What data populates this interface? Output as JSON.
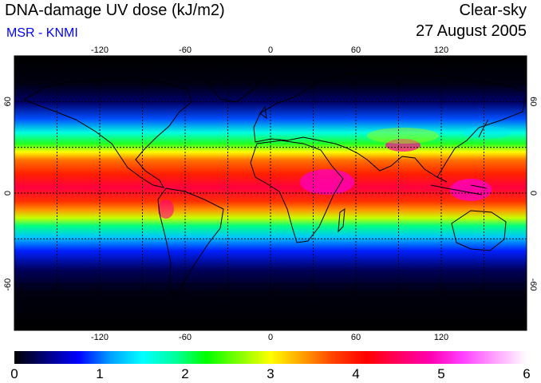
{
  "header": {
    "title": "DNA-damage UV dose (kJ/m2)",
    "subtitle": "MSR - KNMI",
    "condition": "Clear-sky",
    "date": "27 August 2005"
  },
  "map": {
    "projection": "equirectangular",
    "lon_range": [
      -180,
      180
    ],
    "lat_range": [
      -90,
      90
    ],
    "lon_ticks": [
      "-120",
      "-60",
      "0",
      "60",
      "120"
    ],
    "lat_ticks": [
      "60",
      "0",
      "-60"
    ],
    "grid": "dashed, every 30 degrees",
    "coastlines": true
  },
  "colorbar": {
    "min": 0,
    "max": 6,
    "labels": [
      "0",
      "1",
      "2",
      "3",
      "4",
      "5",
      "6"
    ],
    "colors": [
      "#000000",
      "#00007f",
      "#0000ff",
      "#00a0ff",
      "#00ffff",
      "#00ff9f",
      "#00ff00",
      "#7fff00",
      "#ffff00",
      "#ffa000",
      "#ff4000",
      "#ff0000",
      "#ff0060",
      "#ff00b0",
      "#ff40ff",
      "#ffa0ff",
      "#ffffff"
    ]
  }
}
